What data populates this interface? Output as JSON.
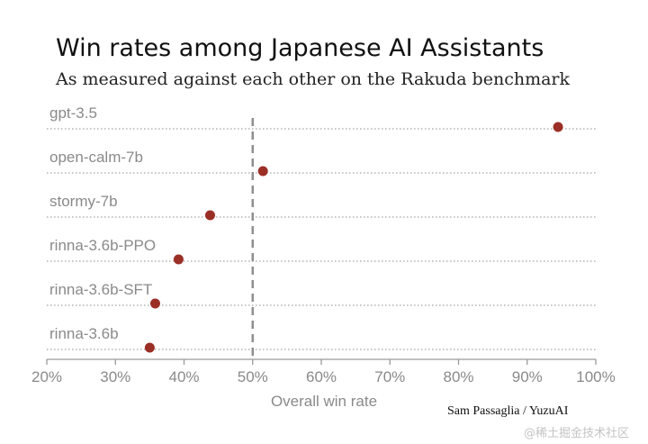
{
  "header": {
    "title": "Win rates among Japanese AI Assistants",
    "subtitle": "As measured against each other on the Rakuda benchmark"
  },
  "credit": "Sam Passaglia / YuzuAI",
  "watermark": "@稀土掘金技术社区",
  "colors": {
    "point": "#9b2f26",
    "reference_line": "#8f8f8f",
    "text_muted": "#8a8a8a"
  },
  "chart_data": {
    "type": "scatter",
    "title": "Win rates among Japanese AI Assistants",
    "subtitle": "As measured against each other on the Rakuda benchmark",
    "xlabel": "Overall win rate",
    "ylabel": "",
    "xlim": [
      20,
      100
    ],
    "x_ticks": [
      "20%",
      "30%",
      "40%",
      "50%",
      "60%",
      "70%",
      "80%",
      "90%",
      "100%"
    ],
    "x_tick_values": [
      20,
      30,
      40,
      50,
      60,
      70,
      80,
      90,
      100
    ],
    "reference_line": 50,
    "grid": false,
    "categories": [
      "gpt-3.5",
      "open-calm-7b",
      "stormy-7b",
      "rinna-3.6b-PPO",
      "rinna-3.6b-SFT",
      "rinna-3.6b"
    ],
    "values": [
      94.5,
      51.5,
      43.8,
      39.2,
      35.8,
      35.0
    ]
  }
}
